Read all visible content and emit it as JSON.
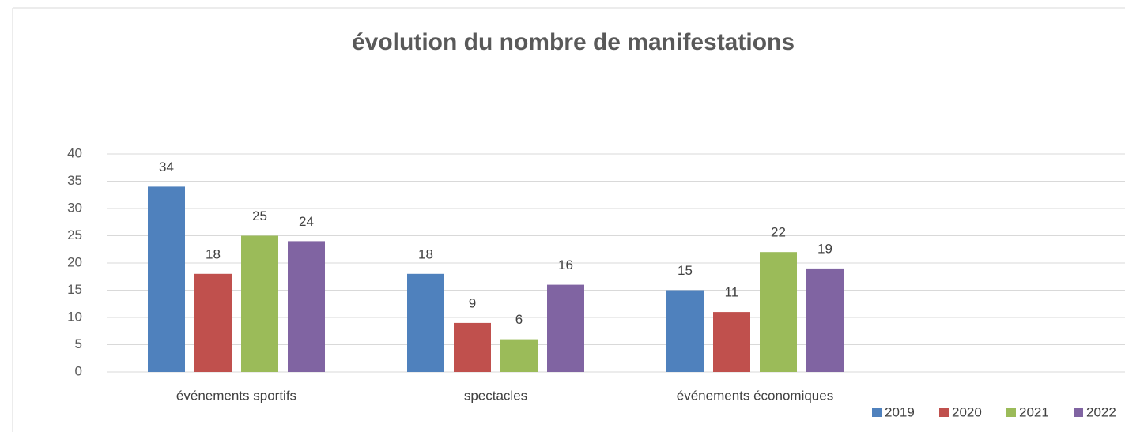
{
  "chart_data": {
    "type": "bar",
    "title": "évolution du nombre de manifestations",
    "categories": [
      "événements sportifs",
      "spectacles",
      "événements économiques",
      null
    ],
    "series": [
      {
        "name": "2019",
        "color": "#4f81bd",
        "values": [
          34,
          18,
          15,
          null
        ]
      },
      {
        "name": "2020",
        "color": "#c0504d",
        "values": [
          18,
          9,
          11,
          null
        ]
      },
      {
        "name": "2021",
        "color": "#9bbb59",
        "values": [
          25,
          6,
          22,
          null
        ]
      },
      {
        "name": "2022",
        "color": "#8064a2",
        "values": [
          24,
          16,
          19,
          null
        ]
      }
    ],
    "ylim": [
      0,
      40
    ],
    "yticks": [
      0,
      5,
      10,
      15,
      20,
      25,
      30,
      35,
      40
    ],
    "grid": true,
    "legend": "bottom-right"
  }
}
